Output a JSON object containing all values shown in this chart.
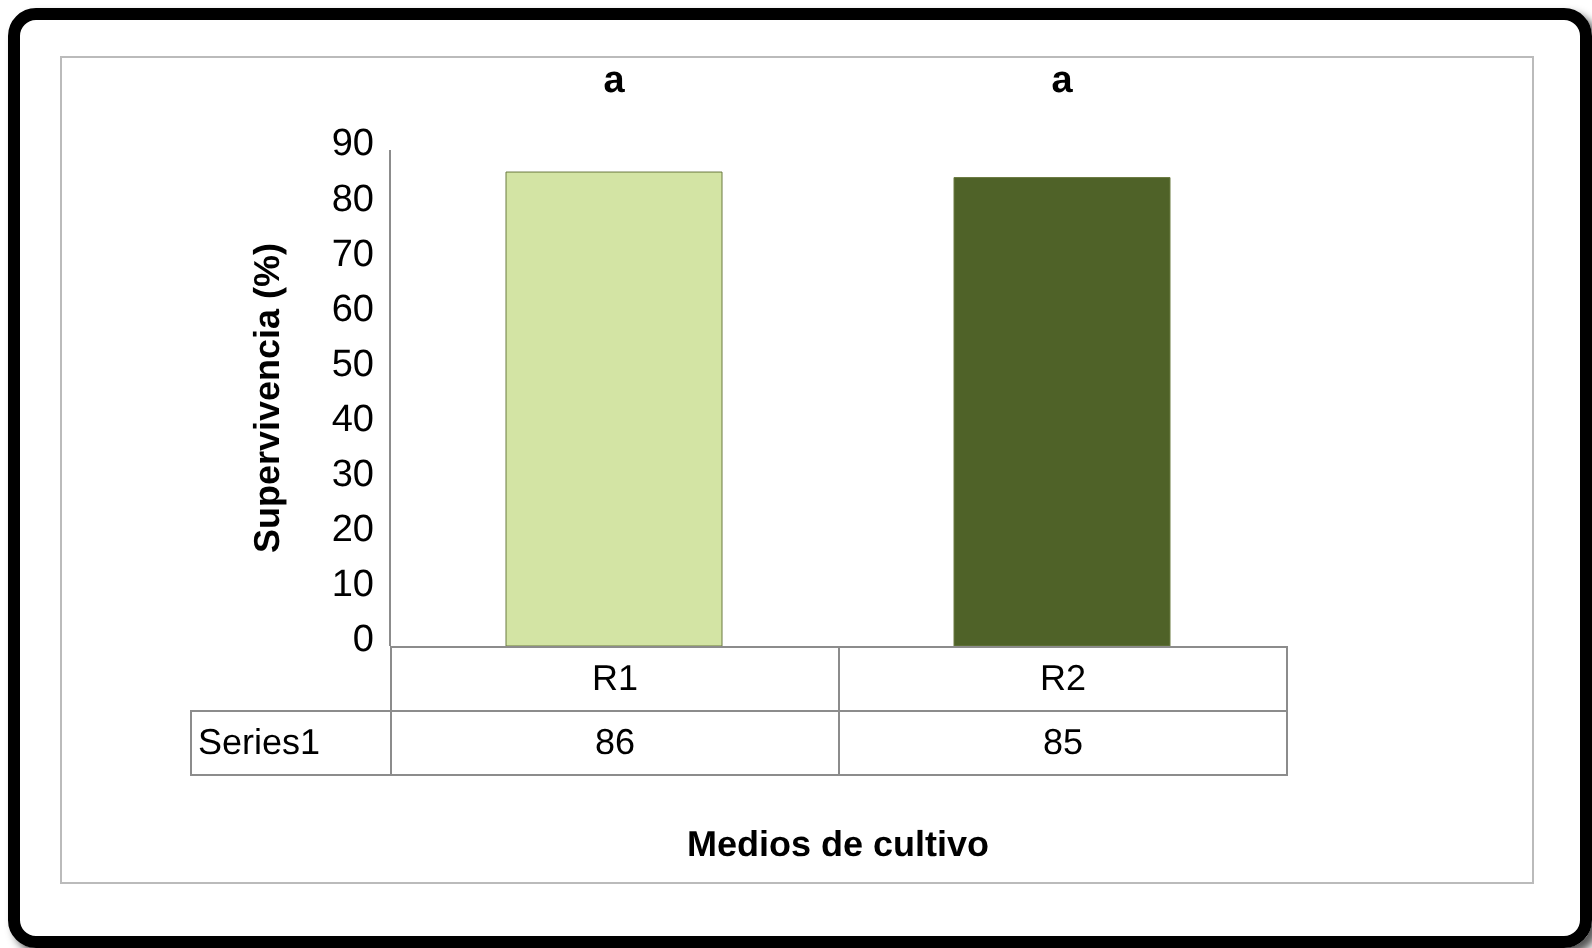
{
  "chart_data": {
    "type": "bar",
    "xlabel": "Medios de cultivo",
    "ylabel": "Supervivencia (%)",
    "categories": [
      "R1",
      "R2"
    ],
    "series": [
      {
        "name": "Series1",
        "colors": [
          "#d3e4a4",
          "#4f6228"
        ],
        "values": [
          86,
          85
        ]
      }
    ],
    "ylim": [
      0,
      90
    ],
    "yticks": [
      0,
      10,
      20,
      30,
      40,
      50,
      60,
      70,
      80,
      90
    ],
    "grid": false,
    "data_labels": true,
    "annotations": [
      "a",
      "a"
    ]
  }
}
